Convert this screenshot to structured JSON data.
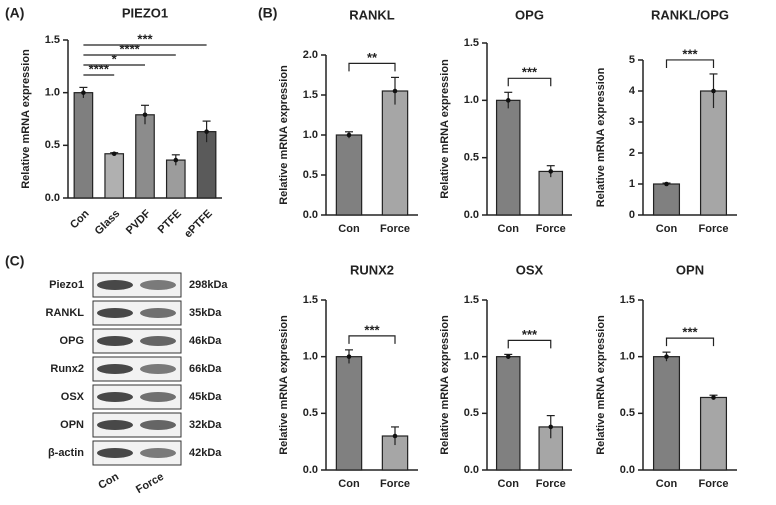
{
  "panel_labels": [
    "(A)",
    "(B)",
    "(C)"
  ],
  "chart_data": [
    {
      "type": "bar",
      "title": "PIEZO1",
      "ylabel": "Relative mRNA expression",
      "categories": [
        "Con",
        "Glass",
        "PVDF",
        "PTFE",
        "ePTFE"
      ],
      "values": [
        1.0,
        0.42,
        0.79,
        0.36,
        0.63
      ],
      "errors": [
        0.05,
        0.01,
        0.09,
        0.05,
        0.1
      ],
      "colors": [
        "#7f7f7f",
        "#b0b0b0",
        "#8c8c8c",
        "#9c9c9c",
        "#5a5a5a"
      ],
      "ylim": [
        0,
        1.5
      ],
      "yticks": [
        {
          "value": 0,
          "label": "0.0"
        },
        0.5,
        {
          "value": 1,
          "label": "1.0"
        },
        1.5
      ],
      "annotations": [
        "****",
        "*",
        "****",
        "***"
      ]
    },
    {
      "type": "bar",
      "title": "RANKL",
      "ylabel": "Relative mRNA expression",
      "categories": [
        "Con",
        "Force"
      ],
      "values": [
        1.0,
        1.55
      ],
      "errors": [
        0.04,
        0.17
      ],
      "colors": [
        "#808080",
        "#a6a6a6"
      ],
      "ylim": [
        0,
        2
      ],
      "yticks": [
        {
          "value": 0,
          "label": "0.0"
        },
        0.5,
        {
          "value": 1,
          "label": "1.0"
        },
        1.5,
        {
          "value": 2,
          "label": "2.0"
        }
      ],
      "annotations": [
        "**"
      ]
    },
    {
      "type": "bar",
      "title": "OPG",
      "ylabel": "Relative mRNA expression",
      "categories": [
        "Con",
        "Force"
      ],
      "values": [
        1.0,
        0.38
      ],
      "errors": [
        0.07,
        0.05
      ],
      "colors": [
        "#808080",
        "#a6a6a6"
      ],
      "ylim": [
        0,
        1.5
      ],
      "yticks": [
        {
          "value": 0,
          "label": "0.0"
        },
        0.5,
        {
          "value": 1,
          "label": "1.0"
        },
        1.5
      ],
      "annotations": [
        "***"
      ]
    },
    {
      "type": "bar",
      "title": "RANKL/OPG",
      "ylabel": "Relative mRNA expression",
      "categories": [
        "Con",
        "Force"
      ],
      "values": [
        1.0,
        4.0
      ],
      "errors": [
        0.03,
        0.55
      ],
      "colors": [
        "#808080",
        "#a6a6a6"
      ],
      "ylim": [
        0,
        5
      ],
      "yticks": [
        0,
        1,
        2,
        3,
        4,
        5
      ],
      "annotations": [
        "***"
      ]
    },
    {
      "type": "bar",
      "title": "RUNX2",
      "ylabel": "Relative mRNA expression",
      "categories": [
        "Con",
        "Force"
      ],
      "values": [
        1.0,
        0.3
      ],
      "errors": [
        0.06,
        0.08
      ],
      "colors": [
        "#808080",
        "#a6a6a6"
      ],
      "ylim": [
        0,
        1.5
      ],
      "yticks": [
        {
          "value": 0,
          "label": "0.0"
        },
        0.5,
        {
          "value": 1,
          "label": "1.0"
        },
        1.5
      ],
      "annotations": [
        "***"
      ]
    },
    {
      "type": "bar",
      "title": "OSX",
      "ylabel": "Relative mRNA expression",
      "categories": [
        "Con",
        "Force"
      ],
      "values": [
        1.0,
        0.38
      ],
      "errors": [
        0.02,
        0.1
      ],
      "colors": [
        "#808080",
        "#a6a6a6"
      ],
      "ylim": [
        0,
        1.5
      ],
      "yticks": [
        {
          "value": 0,
          "label": "0.0"
        },
        0.5,
        {
          "value": 1,
          "label": "1.0"
        },
        1.5
      ],
      "annotations": [
        "***"
      ]
    },
    {
      "type": "bar",
      "title": "OPN",
      "ylabel": "Relative mRNA expression",
      "categories": [
        "Con",
        "Force"
      ],
      "values": [
        1.0,
        0.64
      ],
      "errors": [
        0.04,
        0.02
      ],
      "colors": [
        "#808080",
        "#a6a6a6"
      ],
      "ylim": [
        0,
        1.5
      ],
      "yticks": [
        {
          "value": 0,
          "label": "0.0"
        },
        0.5,
        {
          "value": 1,
          "label": "1.0"
        },
        1.5
      ],
      "annotations": [
        "***"
      ]
    }
  ],
  "blot": {
    "proteins": [
      "Piezo1",
      "RANKL",
      "OPG",
      "Runx2",
      "OSX",
      "OPN",
      "β-actin"
    ],
    "sizes": [
      "298kDa",
      "35kDa",
      "46kDa",
      "66kDa",
      "45kDa",
      "32kDa",
      "42kDa"
    ],
    "lanes": [
      "Con",
      "Force"
    ]
  }
}
